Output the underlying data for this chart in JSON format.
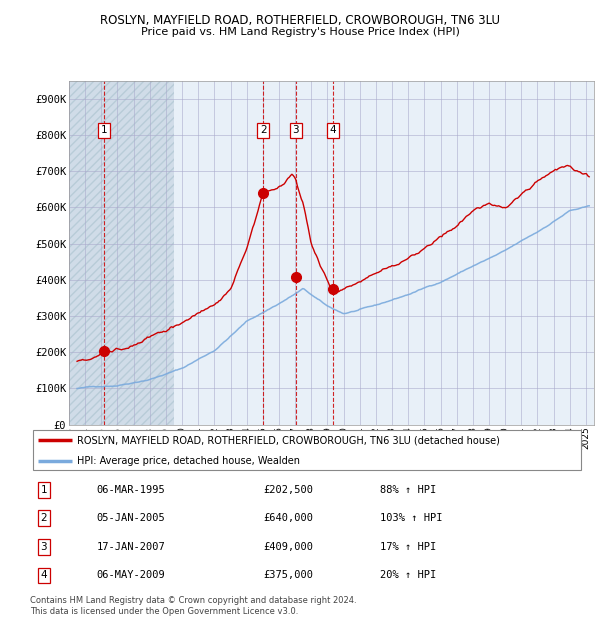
{
  "title": "ROSLYN, MAYFIELD ROAD, ROTHERFIELD, CROWBOROUGH, TN6 3LU",
  "subtitle": "Price paid vs. HM Land Registry's House Price Index (HPI)",
  "legend_line1": "ROSLYN, MAYFIELD ROAD, ROTHERFIELD, CROWBOROUGH, TN6 3LU (detached house)",
  "legend_line2": "HPI: Average price, detached house, Wealden",
  "footer1": "Contains HM Land Registry data © Crown copyright and database right 2024.",
  "footer2": "This data is licensed under the Open Government Licence v3.0.",
  "red_color": "#cc0000",
  "blue_color": "#7aaadd",
  "grid_color": "#aaaacc",
  "sale_dates": [
    1995.18,
    2005.02,
    2007.05,
    2009.35
  ],
  "sale_prices": [
    202500,
    640000,
    409000,
    375000
  ],
  "sale_labels": [
    "1",
    "2",
    "3",
    "4"
  ],
  "table_rows": [
    [
      "1",
      "06-MAR-1995",
      "£202,500",
      "88% ↑ HPI"
    ],
    [
      "2",
      "05-JAN-2005",
      "£640,000",
      "103% ↑ HPI"
    ],
    [
      "3",
      "17-JAN-2007",
      "£409,000",
      "17% ↑ HPI"
    ],
    [
      "4",
      "06-MAY-2009",
      "£375,000",
      "20% ↑ HPI"
    ]
  ],
  "ylim": [
    0,
    950000
  ],
  "yticks": [
    0,
    100000,
    200000,
    300000,
    400000,
    500000,
    600000,
    700000,
    800000,
    900000
  ],
  "ytick_labels": [
    "£0",
    "£100K",
    "£200K",
    "£300K",
    "£400K",
    "£500K",
    "£600K",
    "£700K",
    "£800K",
    "£900K"
  ],
  "xmin": 1993.0,
  "xmax": 2025.5,
  "hatch_end": 1999.5
}
